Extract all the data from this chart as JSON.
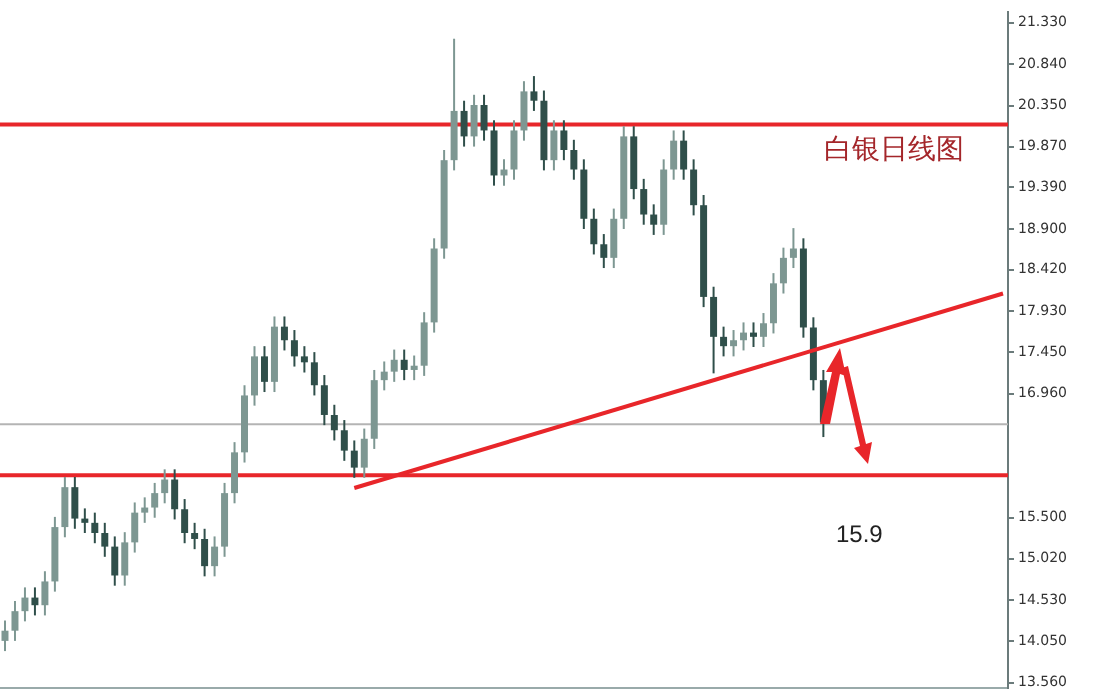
{
  "chart_data": {
    "type": "candlestick",
    "categories": [
      null,
      null,
      null,
      null,
      null,
      null,
      null,
      null,
      null,
      null,
      null,
      null,
      null,
      null,
      null,
      null,
      null,
      null,
      null,
      null,
      null,
      null,
      null,
      null,
      null,
      null,
      null,
      null,
      null,
      null,
      null,
      null,
      null,
      null,
      null,
      null,
      null,
      null,
      null,
      null,
      null,
      null,
      null,
      null,
      null,
      null,
      null,
      null,
      null,
      null,
      null,
      null,
      null,
      null,
      null,
      null,
      null,
      null,
      null,
      null,
      null,
      null,
      null,
      null,
      null,
      null,
      null,
      null,
      null,
      null,
      null,
      null,
      null,
      null,
      null,
      null,
      null,
      null,
      null,
      null,
      null,
      null,
      null,
      null,
      null,
      null,
      null,
      null,
      null,
      null,
      null,
      null,
      null,
      null,
      null,
      null,
      null,
      null,
      null,
      null,
      null
    ],
    "colors": [
      "#7d9792",
      "#7d9792",
      "#7d9792",
      "#2f4f4a",
      "#7d9792",
      "#7d9792",
      "#7d9792",
      "#2f4f4a",
      "#2f4f4a",
      "#2f4f4a",
      "#2f4f4a",
      "#2f4f4a",
      "#7d9792",
      "#7d9792",
      "#7d9792",
      "#7d9792",
      "#7d9792",
      "#2f4f4a",
      "#2f4f4a",
      "#2f4f4a",
      "#2f4f4a",
      "#7d9792",
      "#7d9792",
      "#7d9792",
      "#7d9792",
      "#7d9792",
      "#2f4f4a",
      "#7d9792",
      "#2f4f4a",
      "#2f4f4a",
      "#2f4f4a",
      "#2f4f4a",
      "#2f4f4a",
      "#2f4f4a",
      "#2f4f4a",
      "#2f4f4a",
      "#7d9792",
      "#7d9792",
      "#7d9792",
      "#7d9792",
      "#2f4f4a",
      "#7d9792",
      "#7d9792",
      "#7d9792",
      "#7d9792",
      "#7d9792",
      "#2f4f4a",
      "#7d9792",
      "#2f4f4a",
      "#2f4f4a",
      "#7d9792",
      "#7d9792",
      "#7d9792",
      "#2f4f4a",
      "#2f4f4a",
      "#7d9792",
      "#2f4f4a",
      "#2f4f4a",
      "#2f4f4a",
      "#2f4f4a",
      "#2f4f4a",
      "#7d9792",
      "#7d9792",
      "#2f4f4a",
      "#2f4f4a",
      "#2f4f4a",
      "#7d9792",
      "#7d9792",
      "#2f4f4a",
      "#2f4f4a",
      "#2f4f4a",
      "#2f4f4a",
      "#2f4f4a",
      "#7d9792",
      "#7d9792",
      "#2f4f4a",
      "#7d9792",
      "#7d9792",
      "#7d9792",
      "#7d9792",
      "#2f4f4a",
      "#2f4f4a",
      "#2f4f4a",
      null,
      null,
      null,
      null,
      null,
      null,
      null,
      null,
      null,
      null,
      null,
      null,
      null,
      null,
      null,
      null,
      null,
      null
    ],
    "ohlc": [
      [
        14.05,
        14.29,
        13.93,
        14.17
      ],
      [
        14.17,
        14.52,
        14.05,
        14.4
      ],
      [
        14.4,
        14.68,
        14.28,
        14.56
      ],
      [
        14.56,
        14.68,
        14.35,
        14.47
      ],
      [
        14.47,
        14.87,
        14.35,
        14.75
      ],
      [
        14.75,
        15.51,
        14.63,
        15.39
      ],
      [
        15.39,
        15.98,
        15.27,
        15.86
      ],
      [
        15.86,
        15.98,
        15.37,
        15.49
      ],
      [
        15.49,
        15.61,
        15.32,
        15.44
      ],
      [
        15.44,
        15.56,
        15.2,
        15.32
      ],
      [
        15.32,
        15.44,
        15.04,
        15.16
      ],
      [
        15.16,
        15.28,
        14.7,
        14.82
      ],
      [
        14.82,
        15.33,
        14.7,
        15.21
      ],
      [
        15.21,
        15.68,
        15.09,
        15.56
      ],
      [
        15.56,
        15.74,
        15.44,
        15.62
      ],
      [
        15.62,
        15.91,
        15.5,
        15.79
      ],
      [
        15.79,
        16.07,
        15.67,
        15.95
      ],
      [
        15.95,
        16.07,
        15.48,
        15.6
      ],
      [
        15.6,
        15.72,
        15.2,
        15.32
      ],
      [
        15.32,
        15.44,
        15.13,
        15.25
      ],
      [
        15.25,
        15.37,
        14.81,
        14.93
      ],
      [
        14.93,
        15.28,
        14.81,
        15.16
      ],
      [
        15.16,
        15.91,
        15.04,
        15.79
      ],
      [
        15.79,
        16.39,
        15.67,
        16.27
      ],
      [
        16.27,
        17.06,
        16.15,
        16.94
      ],
      [
        16.94,
        17.52,
        16.82,
        17.4
      ],
      [
        17.4,
        17.52,
        16.98,
        17.1
      ],
      [
        17.1,
        17.87,
        16.98,
        17.75
      ],
      [
        17.75,
        17.87,
        17.47,
        17.59
      ],
      [
        17.59,
        17.71,
        17.28,
        17.4
      ],
      [
        17.4,
        17.52,
        17.21,
        17.33
      ],
      [
        17.33,
        17.45,
        16.94,
        17.06
      ],
      [
        17.06,
        17.18,
        16.59,
        16.71
      ],
      [
        16.71,
        16.83,
        16.41,
        16.53
      ],
      [
        16.53,
        16.65,
        16.17,
        16.29
      ],
      [
        16.29,
        16.41,
        15.97,
        16.09
      ],
      [
        16.09,
        16.55,
        15.97,
        16.43
      ],
      [
        16.43,
        17.24,
        16.31,
        17.12
      ],
      [
        17.12,
        17.34,
        17.0,
        17.22
      ],
      [
        17.22,
        17.48,
        17.1,
        17.36
      ],
      [
        17.36,
        17.48,
        17.12,
        17.24
      ],
      [
        17.24,
        17.41,
        17.12,
        17.29
      ],
      [
        17.29,
        17.92,
        17.17,
        17.8
      ],
      [
        17.8,
        18.79,
        17.68,
        18.67
      ],
      [
        18.67,
        19.83,
        18.55,
        19.71
      ],
      [
        19.71,
        21.14,
        19.59,
        20.29
      ],
      [
        20.29,
        20.41,
        19.87,
        19.99
      ],
      [
        19.99,
        20.48,
        19.87,
        20.36
      ],
      [
        20.36,
        20.48,
        19.94,
        20.06
      ],
      [
        20.06,
        20.18,
        19.41,
        19.53
      ],
      [
        19.53,
        19.72,
        19.41,
        19.6
      ],
      [
        19.6,
        20.18,
        19.48,
        20.06
      ],
      [
        20.06,
        20.64,
        19.94,
        20.52
      ],
      [
        20.52,
        20.7,
        20.29,
        20.41
      ],
      [
        20.41,
        20.53,
        19.59,
        19.71
      ],
      [
        19.71,
        20.18,
        19.59,
        20.06
      ],
      [
        20.06,
        20.18,
        19.71,
        19.83
      ],
      [
        19.83,
        19.95,
        19.48,
        19.6
      ],
      [
        19.6,
        19.72,
        18.9,
        19.02
      ],
      [
        19.02,
        19.14,
        18.6,
        18.72
      ],
      [
        18.72,
        18.84,
        18.44,
        18.56
      ],
      [
        18.56,
        19.14,
        18.44,
        19.02
      ],
      [
        19.02,
        20.11,
        18.9,
        19.99
      ],
      [
        19.99,
        20.11,
        19.25,
        19.37
      ],
      [
        19.37,
        19.49,
        18.95,
        19.07
      ],
      [
        19.07,
        19.19,
        18.83,
        18.95
      ],
      [
        18.95,
        19.72,
        18.83,
        19.6
      ],
      [
        19.6,
        20.06,
        19.48,
        19.94
      ],
      [
        19.94,
        20.06,
        19.48,
        19.6
      ],
      [
        19.6,
        19.72,
        19.06,
        19.18
      ],
      [
        19.18,
        19.3,
        17.98,
        18.1
      ],
      [
        18.1,
        18.22,
        17.2,
        17.63
      ],
      [
        17.63,
        17.75,
        17.4,
        17.52
      ],
      [
        17.52,
        17.71,
        17.4,
        17.59
      ],
      [
        17.59,
        17.8,
        17.47,
        17.68
      ],
      [
        17.68,
        17.8,
        17.51,
        17.63
      ],
      [
        17.63,
        17.91,
        17.51,
        17.79
      ],
      [
        17.79,
        18.38,
        17.67,
        18.26
      ],
      [
        18.26,
        18.68,
        18.14,
        18.56
      ],
      [
        18.56,
        18.91,
        18.44,
        18.67
      ],
      [
        18.67,
        18.79,
        17.62,
        17.74
      ],
      [
        17.74,
        17.86,
        17.0,
        17.12
      ],
      [
        17.12,
        17.24,
        16.45,
        16.62
      ],
      null,
      null,
      null,
      null,
      null,
      null,
      null,
      null,
      null,
      null,
      null,
      null,
      null,
      null,
      null,
      null,
      null,
      null
    ],
    "series": [
      {
        "type": "line",
        "color": "#e8262a",
        "values": [
          null,
          null,
          null,
          null,
          null,
          null,
          null,
          null,
          null,
          null,
          null,
          null,
          null,
          null,
          null,
          null,
          null,
          null,
          null,
          null,
          null,
          null,
          null,
          null,
          null,
          null,
          null,
          null,
          null,
          null,
          null,
          null,
          null,
          null,
          null,
          15.85,
          null,
          null,
          null,
          null,
          null,
          null,
          null,
          null,
          null,
          null,
          null,
          null,
          null,
          null,
          null,
          null,
          null,
          null,
          null,
          null,
          null,
          null,
          null,
          null,
          null,
          null,
          null,
          null,
          null,
          null,
          null,
          null,
          null,
          null,
          null,
          null,
          null,
          null,
          null,
          null,
          null,
          null,
          null,
          null,
          null,
          null,
          null,
          null,
          null,
          null,
          null,
          null,
          null,
          null,
          null,
          null,
          null,
          null,
          null,
          null,
          null,
          null,
          null,
          null,
          18.14
        ]
      }
    ],
    "ylim": [
      13.5,
      21.45
    ],
    "yticks": [
      {
        "value": 13.56,
        "label": "13.560"
      },
      {
        "value": 14.05,
        "label": "14.050"
      },
      {
        "value": 14.53,
        "label": "14.530"
      },
      {
        "value": 15.02,
        "label": "15.020"
      },
      {
        "value": 15.5,
        "label": "15.500"
      },
      {
        "value": 16.96,
        "label": "16.960"
      },
      {
        "value": 17.45,
        "label": "17.450"
      },
      {
        "value": 17.93,
        "label": "17.930"
      },
      {
        "value": 18.42,
        "label": "18.420"
      },
      {
        "value": 18.9,
        "label": "18.900"
      },
      {
        "value": 19.39,
        "label": "19.390"
      },
      {
        "value": 19.87,
        "label": "19.870"
      },
      {
        "value": 20.35,
        "label": "20.350"
      },
      {
        "value": 20.84,
        "label": "20.840"
      },
      {
        "value": 21.33,
        "label": "21.330"
      }
    ],
    "tick_labels": "y",
    "grid": false,
    "legend": false,
    "ref_lines": [
      {
        "axis": "y",
        "value": 20.13,
        "color": "#e8262a"
      },
      {
        "axis": "y",
        "value": 16.0,
        "color": "#e8262a"
      },
      {
        "axis": "y",
        "value": 16.6,
        "color": "#b4b4b4"
      }
    ],
    "annotations": [
      "白银日线图",
      "15.9"
    ]
  }
}
